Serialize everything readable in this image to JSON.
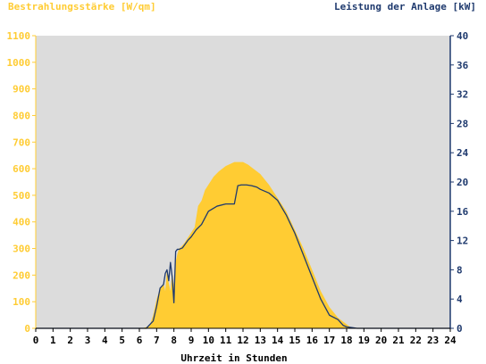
{
  "chart_data": {
    "type": "area",
    "title_left": "Bestrahlungsstärke [W/qm]",
    "title_right": "Leistung der Anlage [kW]",
    "xlabel": "Uhrzeit in Stunden",
    "xlim": [
      0,
      24
    ],
    "x_ticks": [
      "0",
      "1",
      "2",
      "3",
      "4",
      "5",
      "6",
      "7",
      "8",
      "9",
      "10",
      "11",
      "12",
      "13",
      "14",
      "15",
      "16",
      "17",
      "18",
      "19",
      "20",
      "21",
      "22",
      "23",
      "24"
    ],
    "ylim_left": [
      0,
      1100
    ],
    "y_ticks_left": [
      "0",
      "100",
      "200",
      "300",
      "400",
      "500",
      "600",
      "700",
      "800",
      "900",
      "1000",
      "1100"
    ],
    "ylim_right": [
      0,
      40
    ],
    "y_ticks_right": [
      "0",
      "4",
      "8",
      "12",
      "16",
      "20",
      "24",
      "28",
      "32",
      "36",
      "40"
    ],
    "colors": {
      "plot_bg": "#dcdcdc",
      "irradiance": "#ffcc33",
      "power": "#1f3a6e",
      "left_axis": "#ffcc33",
      "right_axis": "#1f3a6e"
    },
    "series": [
      {
        "name": "Bestrahlungsstärke [W/qm]",
        "axis": "left",
        "x": [
          0,
          6.2,
          6.6,
          6.8,
          7.0,
          7.2,
          7.4,
          7.5,
          7.6,
          7.7,
          7.8,
          7.9,
          8.0,
          8.1,
          8.2,
          8.3,
          8.4,
          8.6,
          8.8,
          9.0,
          9.2,
          9.4,
          9.6,
          9.8,
          10.0,
          10.3,
          10.6,
          11.0,
          11.5,
          12.0,
          12.3,
          12.6,
          13.0,
          13.5,
          14.0,
          14.5,
          15.0,
          15.5,
          16.0,
          16.5,
          17.0,
          17.5,
          17.8,
          18.0,
          18.2,
          18.5,
          18.7,
          24
        ],
        "values": [
          0,
          0,
          10,
          50,
          110,
          150,
          170,
          140,
          220,
          170,
          140,
          210,
          160,
          250,
          280,
          300,
          305,
          320,
          340,
          360,
          380,
          460,
          480,
          520,
          540,
          570,
          590,
          610,
          625,
          625,
          615,
          600,
          580,
          540,
          490,
          440,
          370,
          300,
          220,
          140,
          80,
          40,
          25,
          15,
          6,
          0,
          0,
          0
        ]
      },
      {
        "name": "Leistung der Anlage [kW]",
        "axis": "right",
        "x": [
          0,
          6.4,
          6.8,
          7.0,
          7.2,
          7.4,
          7.5,
          7.6,
          7.7,
          7.8,
          7.9,
          8.0,
          8.1,
          8.2,
          8.3,
          8.5,
          8.8,
          9.0,
          9.3,
          9.6,
          10.0,
          10.5,
          11.0,
          11.5,
          11.7,
          11.9,
          12.2,
          12.5,
          12.8,
          13.0,
          13.5,
          14.0,
          14.5,
          15.0,
          15.5,
          16.0,
          16.5,
          17.0,
          17.5,
          17.8,
          18.0,
          18.3,
          18.6,
          19.0,
          24
        ],
        "values": [
          0,
          0,
          1,
          3,
          5.5,
          6,
          7.5,
          8,
          6.5,
          9,
          7,
          3.5,
          10.5,
          10.8,
          10.8,
          11,
          12,
          12.5,
          13.5,
          14.2,
          16,
          16.7,
          17,
          17,
          19.5,
          19.6,
          19.6,
          19.5,
          19.3,
          19,
          18.5,
          17.5,
          15.5,
          13,
          10,
          7,
          4,
          1.8,
          1.2,
          0.4,
          0.2,
          0.1,
          0,
          0,
          0
        ]
      }
    ]
  }
}
